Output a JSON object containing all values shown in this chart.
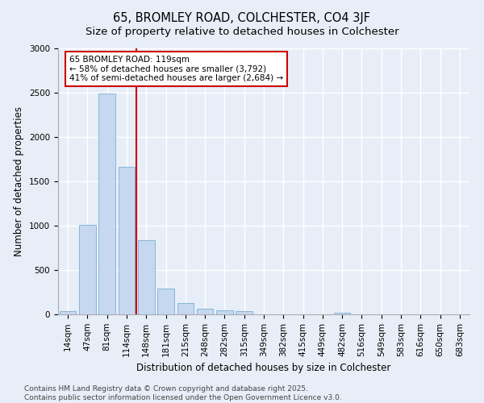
{
  "title": "65, BROMLEY ROAD, COLCHESTER, CO4 3JF",
  "subtitle": "Size of property relative to detached houses in Colchester",
  "xlabel": "Distribution of detached houses by size in Colchester",
  "ylabel": "Number of detached properties",
  "bar_labels": [
    "14sqm",
    "47sqm",
    "81sqm",
    "114sqm",
    "148sqm",
    "181sqm",
    "215sqm",
    "248sqm",
    "282sqm",
    "315sqm",
    "349sqm",
    "382sqm",
    "415sqm",
    "449sqm",
    "482sqm",
    "516sqm",
    "549sqm",
    "583sqm",
    "616sqm",
    "650sqm",
    "683sqm"
  ],
  "bar_values": [
    40,
    1005,
    2490,
    1665,
    835,
    295,
    130,
    60,
    45,
    35,
    0,
    0,
    0,
    0,
    20,
    0,
    0,
    0,
    0,
    0,
    0
  ],
  "bar_color": "#c5d8ef",
  "bar_edgecolor": "#7bafd4",
  "vline_color": "#cc0000",
  "annotation_line1": "65 BROMLEY ROAD: 119sqm",
  "annotation_line2": "← 58% of detached houses are smaller (3,792)",
  "annotation_line3": "41% of semi-detached houses are larger (2,684) →",
  "annotation_box_edgecolor": "#cc0000",
  "ylim": [
    0,
    3000
  ],
  "yticks": [
    0,
    500,
    1000,
    1500,
    2000,
    2500,
    3000
  ],
  "background_color": "#e8eef7",
  "axes_background_color": "#e8eef7",
  "grid_color": "#ffffff",
  "title_fontsize": 10.5,
  "subtitle_fontsize": 9.5,
  "xlabel_fontsize": 8.5,
  "ylabel_fontsize": 8.5,
  "tick_fontsize": 7.5,
  "annotation_fontsize": 7.5,
  "footer_line1": "Contains HM Land Registry data © Crown copyright and database right 2025.",
  "footer_line2": "Contains public sector information licensed under the Open Government Licence v3.0.",
  "footer_fontsize": 6.5
}
